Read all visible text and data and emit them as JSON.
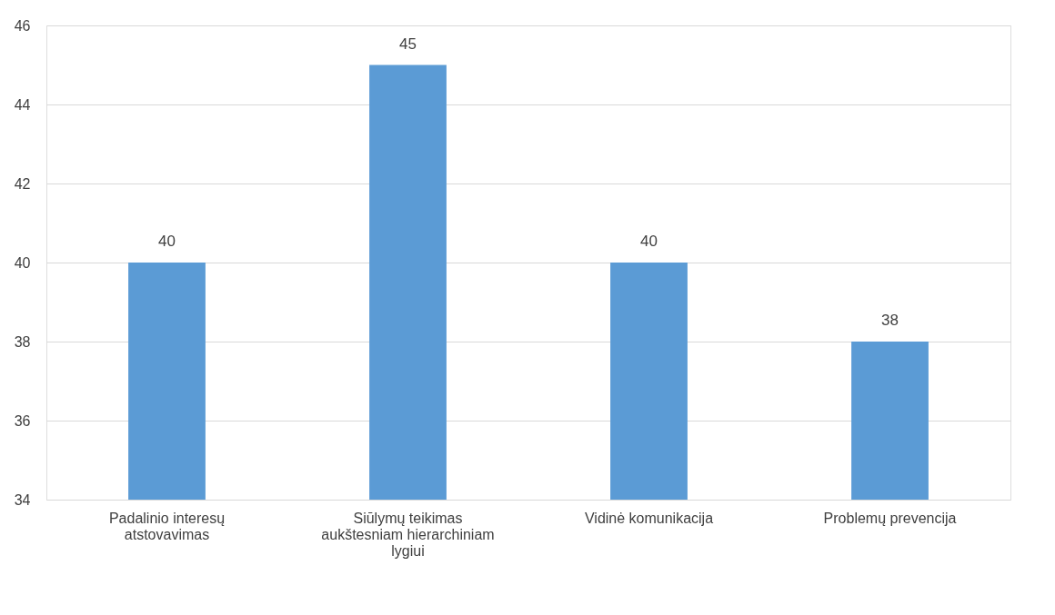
{
  "chart_data": {
    "type": "bar",
    "categories": [
      "Padalinio interesų atstovavimas",
      "Siūlymų teikimas aukštesniam hierarchiniam lygiui",
      "Vidinė komunikacija",
      "Problemų prevencija"
    ],
    "values": [
      40,
      45,
      40,
      38
    ],
    "color": "#5b9bd5",
    "ylim": [
      34,
      46
    ],
    "yticks": [
      34,
      36,
      38,
      40,
      42,
      44,
      46
    ],
    "grid": "y",
    "data_labels": true
  }
}
